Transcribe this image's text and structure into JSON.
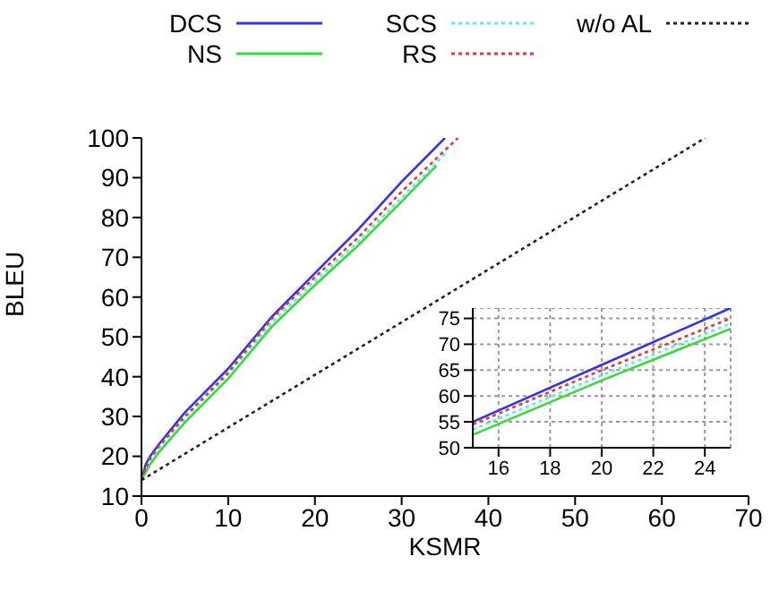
{
  "chart_data": [
    {
      "type": "line",
      "xlabel": "KSMR",
      "ylabel": "BLEU",
      "xlim": [
        0,
        70
      ],
      "ylim": [
        10,
        100
      ],
      "xticks": [
        0,
        10,
        20,
        30,
        40,
        50,
        60,
        70
      ],
      "yticks": [
        10,
        20,
        30,
        40,
        50,
        60,
        70,
        80,
        90,
        100
      ],
      "grid": false,
      "legend": "top",
      "marker": "none",
      "series": [
        {
          "name": "DCS",
          "color": "#3333ee",
          "line_style": "solid",
          "x": [
            0,
            0.5,
            1,
            2,
            5,
            10,
            15,
            20,
            25,
            30,
            35
          ],
          "values": [
            14,
            18,
            20,
            23,
            31,
            42,
            55,
            66,
            77,
            89,
            100
          ]
        },
        {
          "name": "NS",
          "color": "#33dd33",
          "line_style": "solid",
          "x": [
            0,
            1,
            2,
            5,
            10,
            15,
            20,
            25,
            30,
            34
          ],
          "values": [
            14,
            18,
            21,
            28.5,
            39.5,
            52.5,
            63,
            73,
            84,
            93
          ]
        },
        {
          "name": "SCS",
          "color": "#55eeee",
          "line_style": "dotted",
          "x": [
            0,
            1,
            2,
            5,
            10,
            15,
            20,
            25,
            30,
            35
          ],
          "values": [
            14,
            19,
            22,
            29.5,
            40.5,
            53.5,
            64,
            74,
            85,
            96
          ]
        },
        {
          "name": "RS",
          "color": "#ee3333",
          "line_style": "dotted",
          "x": [
            0,
            1,
            2,
            5,
            10,
            15,
            20,
            25,
            30,
            36.5
          ],
          "values": [
            14,
            19.5,
            22.5,
            30,
            41,
            54.5,
            65,
            75,
            86.5,
            100
          ]
        },
        {
          "name": "w/o AL",
          "color": "#222222",
          "line_style": "dotted",
          "x": [
            0,
            65
          ],
          "values": [
            14,
            100
          ]
        }
      ]
    },
    {
      "type": "line",
      "xlim": [
        15,
        25
      ],
      "ylim": [
        50,
        77
      ],
      "xticks": [
        16,
        18,
        20,
        22,
        24
      ],
      "yticks": [
        50,
        55,
        60,
        65,
        70,
        75
      ],
      "grid": true,
      "marker": "none",
      "series": [
        {
          "color": "#3333ee",
          "line_style": "solid",
          "x": [
            15,
            20,
            25
          ],
          "values": [
            55,
            66,
            77
          ]
        },
        {
          "color": "#33dd33",
          "line_style": "solid",
          "x": [
            15,
            20,
            25
          ],
          "values": [
            52.5,
            63,
            73
          ]
        },
        {
          "color": "#55eeee",
          "line_style": "dotted",
          "x": [
            15,
            20,
            25
          ],
          "values": [
            53.5,
            64,
            74
          ]
        },
        {
          "color": "#ee3333",
          "line_style": "dotted",
          "x": [
            15,
            20,
            25
          ],
          "values": [
            54.5,
            65,
            75
          ]
        }
      ]
    }
  ]
}
